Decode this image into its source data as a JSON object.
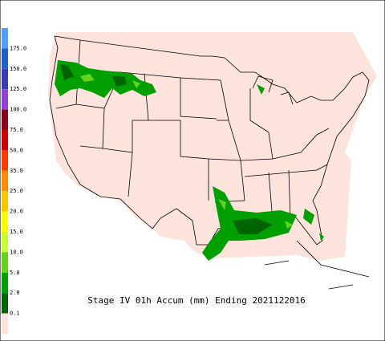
{
  "title": "Stage IV 01h Accum (mm) Ending 2021122016",
  "legend": {
    "items": [
      {
        "label": "175.0",
        "color": "#4f9fff"
      },
      {
        "label": "150.0",
        "color": "#1e5fd0"
      },
      {
        "label": "125.0",
        "color": "#3a3ab8"
      },
      {
        "label": "100.0",
        "color": "#9440d8"
      },
      {
        "label": "75.0",
        "color": "#8a0018"
      },
      {
        "label": "50.0",
        "color": "#c80000"
      },
      {
        "label": "35.0",
        "color": "#ff3c00"
      },
      {
        "label": "25.0",
        "color": "#ff8c00"
      },
      {
        "label": "20.0",
        "color": "#ffc800"
      },
      {
        "label": "15.0",
        "color": "#ffff00"
      },
      {
        "label": "10.0",
        "color": "#c8ff32"
      },
      {
        "label": "5.0",
        "color": "#64d21e"
      },
      {
        "label": "2.0",
        "color": "#00a000"
      },
      {
        "label": "0.1",
        "color": "#006400"
      }
    ],
    "base_color": "#fde3dc"
  }
}
